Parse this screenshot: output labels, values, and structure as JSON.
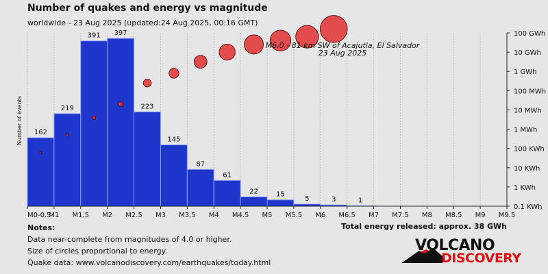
{
  "header": {
    "title": "Number of quakes and energy vs magnitude",
    "subtitle": "worldwide - 23 Aug 2025 (updated:24 Aug 2025, 00:16 GMT)"
  },
  "notes": {
    "heading": "Notes:",
    "line1": "Data near-complete from magnitudes of 4.0 or higher.",
    "line2": "Size of circles proportional to energy.",
    "line3": "Quake data: www.volcanodiscovery.com/earthquakes/today.html"
  },
  "total_energy": "Total energy released: approx. 38 GWh",
  "logo": {
    "word1": "VOLCANO",
    "word2": "DISCOVERY"
  },
  "colors": {
    "bar": "#1f36cc",
    "circle": "#e23030",
    "background": "#e6e6e6"
  },
  "chart_data": {
    "type": "bar",
    "ylabel": "Number of events",
    "x_ticks": [
      "M0-0.5",
      "M1",
      "M1.5",
      "M2",
      "M2.5",
      "M3",
      "M3.5",
      "M4",
      "M4.5",
      "M5",
      "M5.5",
      "M6",
      "M6.5",
      "M7",
      "M7.5",
      "M8",
      "M8.5",
      "M9",
      "M9.5"
    ],
    "bins": [
      {
        "from": 0.5,
        "to": 1.0,
        "count": 162
      },
      {
        "from": 1.0,
        "to": 1.5,
        "count": 219
      },
      {
        "from": 1.5,
        "to": 2.0,
        "count": 391
      },
      {
        "from": 2.0,
        "to": 2.5,
        "count": 397
      },
      {
        "from": 2.5,
        "to": 3.0,
        "count": 223
      },
      {
        "from": 3.0,
        "to": 3.5,
        "count": 145
      },
      {
        "from": 3.5,
        "to": 4.0,
        "count": 87
      },
      {
        "from": 4.0,
        "to": 4.5,
        "count": 61
      },
      {
        "from": 4.5,
        "to": 5.0,
        "count": 22
      },
      {
        "from": 5.0,
        "to": 5.5,
        "count": 15
      },
      {
        "from": 5.5,
        "to": 6.0,
        "count": 5
      },
      {
        "from": 6.0,
        "to": 6.5,
        "count": 3
      },
      {
        "from": 6.5,
        "to": 7.0,
        "count": 1
      }
    ],
    "ylim": [
      0,
      410
    ],
    "energy_axis": {
      "scale": "log",
      "labels": [
        "0.1 KWh",
        "1 KWh",
        "10 KWh",
        "100 KWh",
        "1 MWh",
        "10 MWh",
        "100 MWh",
        "1 GWh",
        "10 GWh",
        "100 GWh"
      ]
    },
    "energy_series": [
      {
        "magnitude": 0.75,
        "log10_kwh": 1.8
      },
      {
        "magnitude": 1.25,
        "log10_kwh": 2.7
      },
      {
        "magnitude": 1.75,
        "log10_kwh": 3.6
      },
      {
        "magnitude": 2.25,
        "log10_kwh": 4.3
      },
      {
        "magnitude": 2.75,
        "log10_kwh": 5.4
      },
      {
        "magnitude": 3.25,
        "log10_kwh": 5.9
      },
      {
        "magnitude": 3.75,
        "log10_kwh": 6.5
      },
      {
        "magnitude": 4.25,
        "log10_kwh": 7.0
      },
      {
        "magnitude": 4.75,
        "log10_kwh": 7.4
      },
      {
        "magnitude": 5.25,
        "log10_kwh": 7.6
      },
      {
        "magnitude": 5.75,
        "log10_kwh": 7.8
      },
      {
        "magnitude": 6.25,
        "log10_kwh": 8.2
      }
    ],
    "annotation": {
      "line1": "M6.0 - 81 km SW of Acajutla, El Salvador",
      "line2": "23 Aug 2025"
    }
  }
}
